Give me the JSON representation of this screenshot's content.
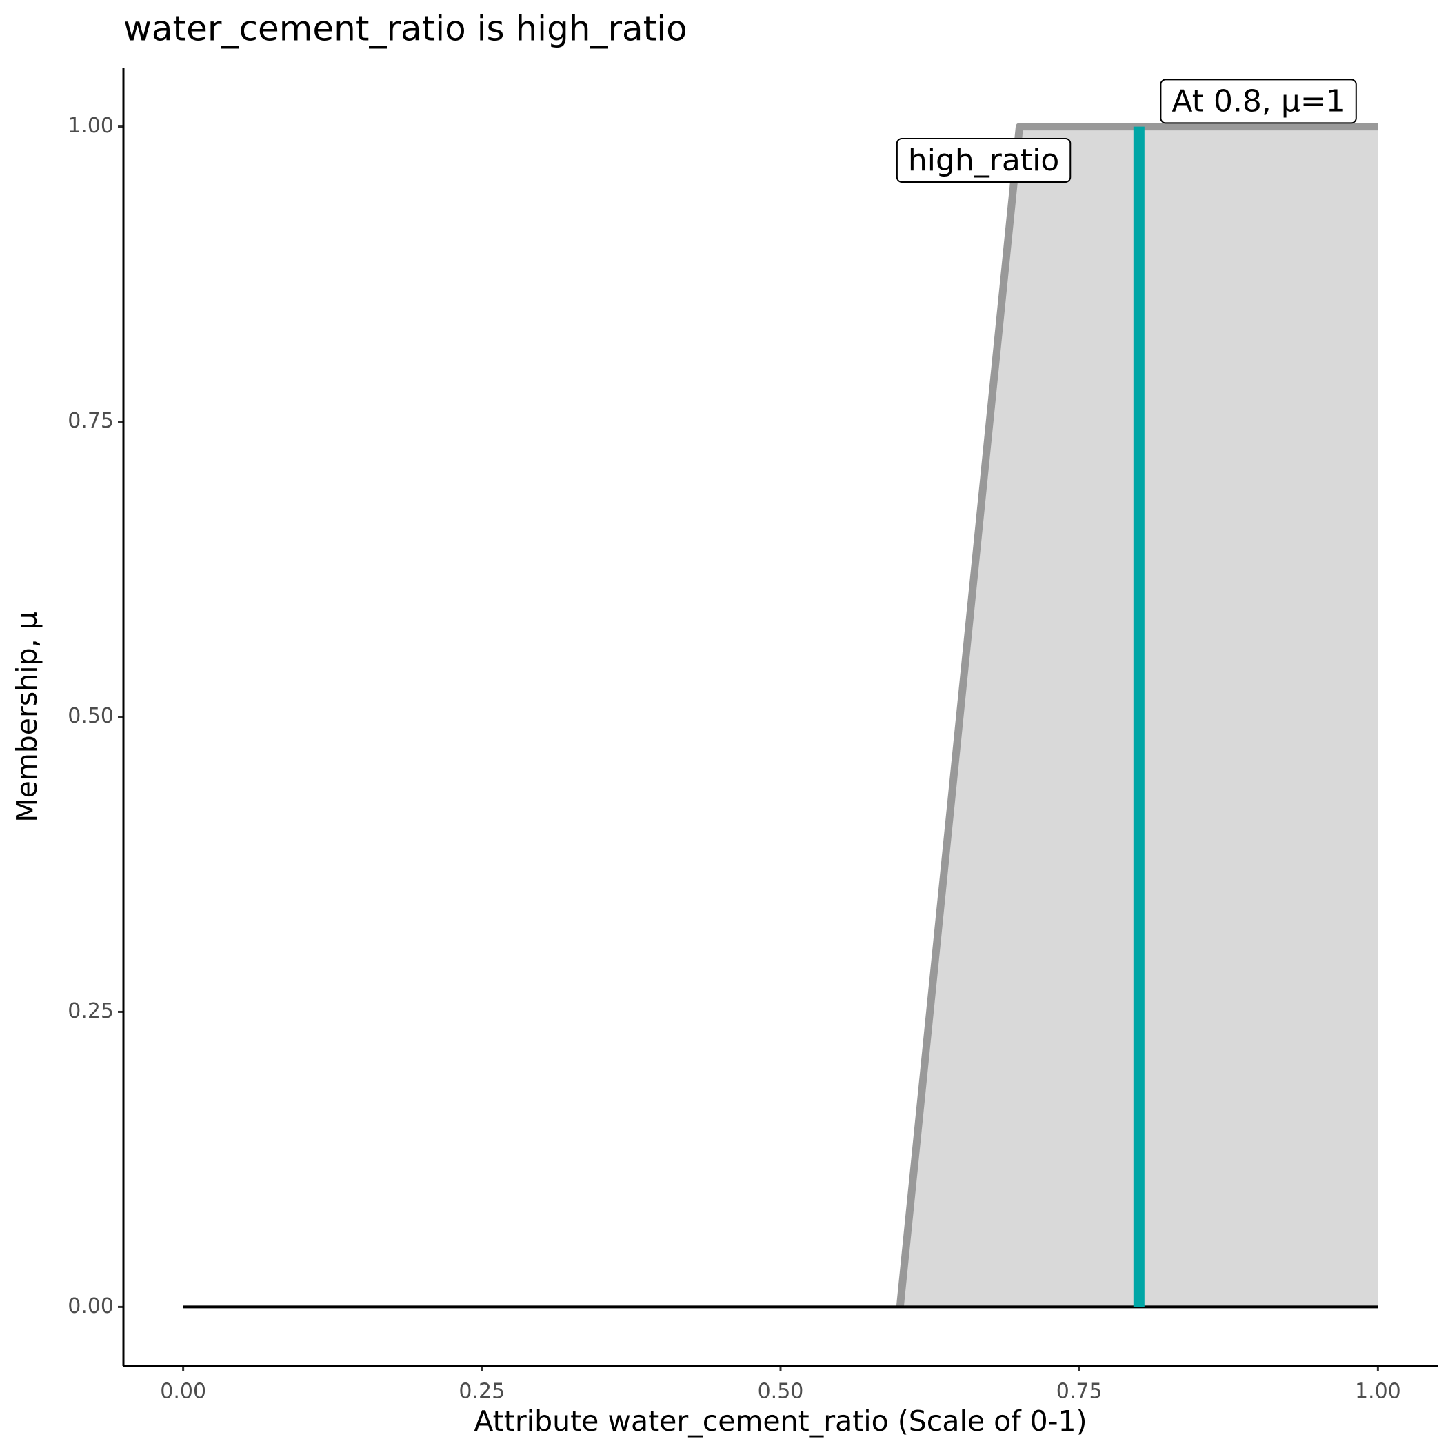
{
  "chart_data": {
    "type": "line",
    "title": "water_cement_ratio is high_ratio",
    "x_label": "Attribute water_cement_ratio (Scale of 0-1)",
    "y_label": "Membership, μ",
    "xlim": [
      -0.05,
      1.05
    ],
    "ylim": [
      -0.05,
      1.05
    ],
    "xticks": [
      {
        "value": 0,
        "label": "0.00"
      },
      {
        "value": 0.25,
        "label": "0.25"
      },
      {
        "value": 0.5,
        "label": "0.50"
      },
      {
        "value": 0.75,
        "label": "0.75"
      },
      {
        "value": 1,
        "label": "1.00"
      }
    ],
    "yticks": [
      {
        "value": 0,
        "label": "0.00"
      },
      {
        "value": 0.25,
        "label": "0.25"
      },
      {
        "value": 0.5,
        "label": "0.50"
      },
      {
        "value": 0.75,
        "label": "0.75"
      },
      {
        "value": 1,
        "label": "1.00"
      }
    ],
    "grid": false,
    "baseline": {
      "x": [
        0,
        1
      ],
      "values": [
        0,
        0
      ],
      "color": "#000000"
    },
    "series": [
      {
        "name": "high_ratio",
        "color": "#999999",
        "fill": "#d9d9d9",
        "x": [
          0.6,
          0.7,
          1
        ],
        "values": [
          0,
          1,
          1
        ]
      }
    ],
    "marker": {
      "x": [
        0.8,
        0.8
      ],
      "values": [
        0,
        1
      ],
      "color": "#00a6a6"
    },
    "annotations": [
      {
        "text": "high_ratio",
        "x": 0.67,
        "y": 0.97
      },
      {
        "text": "At 0.8, μ=1",
        "x": 0.9,
        "y": 1.02
      }
    ]
  }
}
